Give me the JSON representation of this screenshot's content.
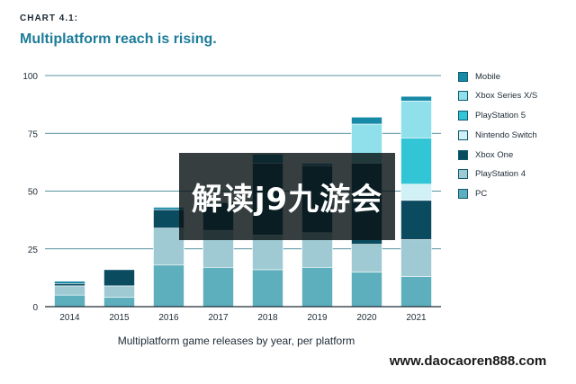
{
  "header": {
    "kicker": "CHART 4.1:",
    "title": "Multiplatform reach is rising."
  },
  "overlay": {
    "text": "解读j9九游会"
  },
  "banner": {
    "text": "www.daocaoren888.com"
  },
  "colors": {
    "PC": "#5eafbd",
    "PlayStation 4": "#9fcad4",
    "Xbox One": "#0a4b60",
    "Nintendo Switch": "#d2f1f7",
    "PlayStation 5": "#31c5d6",
    "Xbox Series X/S": "#8fe0ea",
    "Mobile": "#178aa8",
    "axis": "#1d2b36",
    "grid": "#1f6f80",
    "title": "#1d7c99"
  },
  "chart_data": {
    "type": "bar",
    "stacked": true,
    "title": "Multiplatform reach is rising.",
    "xlabel": "Multiplatform game releases by year, per platform",
    "ylabel": "",
    "ylim": [
      0,
      100
    ],
    "yticks": [
      0,
      25,
      50,
      75,
      100
    ],
    "grid": true,
    "legend_position": "right",
    "categories": [
      "2014",
      "2015",
      "2016",
      "2017",
      "2018",
      "2019",
      "2020",
      "2021"
    ],
    "series": [
      {
        "name": "PC",
        "values": [
          5,
          4,
          18,
          17,
          16,
          17,
          15,
          13
        ]
      },
      {
        "name": "PlayStation 4",
        "values": [
          4,
          5,
          16,
          16,
          15,
          15,
          12,
          16
        ]
      },
      {
        "name": "Xbox One",
        "values": [
          1,
          7,
          8,
          12,
          31,
          29,
          35,
          17
        ]
      },
      {
        "name": "Nintendo Switch",
        "values": [
          0,
          0,
          0,
          0,
          0,
          0,
          0,
          7
        ]
      },
      {
        "name": "PlayStation 5",
        "values": [
          0,
          0,
          0,
          0,
          0,
          0,
          0,
          20
        ]
      },
      {
        "name": "Xbox Series X/S",
        "values": [
          0,
          0,
          0,
          0,
          0,
          0,
          17,
          16
        ]
      },
      {
        "name": "Mobile",
        "values": [
          1,
          0,
          1,
          0,
          4,
          1,
          3,
          2
        ]
      }
    ],
    "legend": [
      "Mobile",
      "Xbox Series X/S",
      "PlayStation 5",
      "Nintendo Switch",
      "Xbox One",
      "PlayStation 4",
      "PC"
    ]
  }
}
